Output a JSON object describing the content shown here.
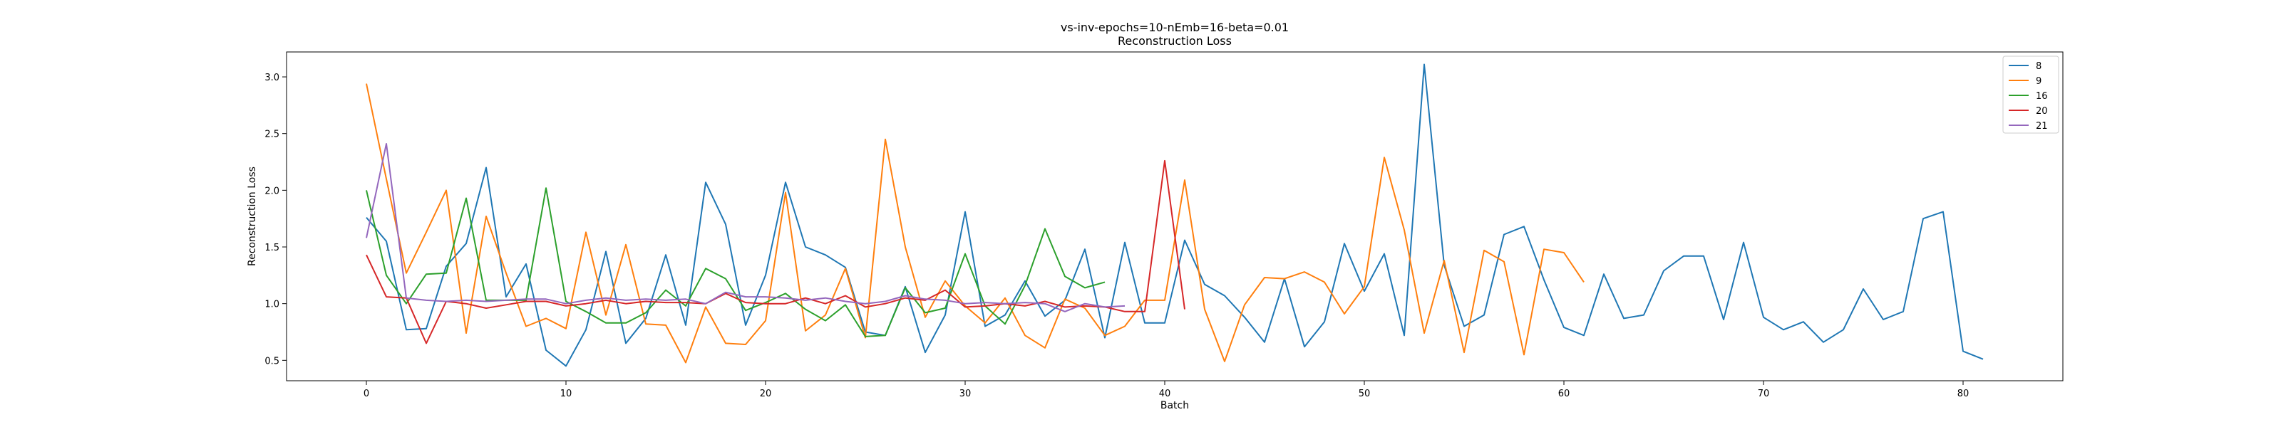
{
  "chart_data": {
    "type": "line",
    "title": "vs-inv-epochs=10-nEmb=16-beta=0.01",
    "subtitle": "Reconstruction Loss",
    "xlabel": "Batch",
    "ylabel": "Reconstruction Loss",
    "xlim": [
      -4,
      85
    ],
    "ylim": [
      0.32,
      3.22
    ],
    "xticks": [
      0,
      10,
      20,
      30,
      40,
      50,
      60,
      70,
      80
    ],
    "yticks": [
      0.5,
      1.0,
      1.5,
      2.0,
      2.5,
      3.0
    ],
    "ytick_labels": [
      "0.5",
      "1.0",
      "1.5",
      "2.0",
      "2.5",
      "3.0"
    ],
    "grid": false,
    "legend_position": "top-right",
    "series": [
      {
        "name": "8",
        "color": "#1f77b4",
        "values": [
          1.76,
          1.55,
          0.77,
          0.78,
          1.33,
          1.53,
          2.2,
          1.06,
          1.35,
          0.59,
          0.45,
          0.77,
          1.46,
          0.65,
          0.87,
          1.43,
          0.81,
          2.07,
          1.7,
          0.81,
          1.25,
          2.07,
          1.5,
          1.43,
          1.32,
          0.75,
          0.72,
          1.15,
          0.57,
          0.9,
          1.81,
          0.8,
          0.9,
          1.2,
          0.89,
          1.03,
          1.48,
          0.7,
          1.54,
          0.83,
          0.83,
          1.56,
          1.17,
          1.07,
          0.88,
          0.66,
          1.22,
          0.62,
          0.84,
          1.53,
          1.11,
          1.44,
          0.72,
          3.11,
          1.34,
          0.8,
          0.9,
          1.61,
          1.68,
          1.21,
          0.79,
          0.72,
          1.26,
          0.87,
          0.9,
          1.29,
          1.42,
          1.42,
          0.86,
          1.54,
          0.88,
          0.77,
          0.84,
          0.66,
          0.77,
          1.13,
          0.86,
          0.93,
          1.75,
          1.81,
          0.58,
          0.51
        ]
      },
      {
        "name": "9",
        "color": "#ff7f0e",
        "values": [
          2.94,
          2.1,
          1.27,
          1.63,
          2.0,
          0.74,
          1.77,
          1.27,
          0.8,
          0.87,
          0.78,
          1.63,
          0.9,
          1.52,
          0.82,
          0.81,
          0.48,
          0.97,
          0.65,
          0.64,
          0.85,
          1.98,
          0.76,
          0.9,
          1.31,
          0.7,
          2.45,
          1.5,
          0.88,
          1.2,
          0.98,
          0.83,
          1.05,
          0.72,
          0.61,
          1.04,
          0.96,
          0.72,
          0.8,
          1.03,
          1.03,
          2.09,
          0.95,
          0.49,
          0.99,
          1.23,
          1.22,
          1.28,
          1.19,
          0.91,
          1.15,
          2.29,
          1.65,
          0.74,
          1.38,
          0.57,
          1.47,
          1.37,
          0.55,
          1.48,
          1.45,
          1.19
        ]
      },
      {
        "name": "16",
        "color": "#2ca02c",
        "values": [
          2.0,
          1.25,
          1.0,
          1.26,
          1.27,
          1.93,
          1.03,
          1.03,
          1.03,
          2.02,
          1.02,
          0.93,
          0.83,
          0.83,
          0.92,
          1.12,
          0.98,
          1.31,
          1.22,
          0.94,
          1.01,
          1.09,
          0.95,
          0.85,
          0.99,
          0.71,
          0.72,
          1.14,
          0.92,
          0.96,
          1.44,
          0.98,
          0.82,
          1.16,
          1.66,
          1.24,
          1.14,
          1.19
        ]
      },
      {
        "name": "20",
        "color": "#d62728",
        "values": [
          1.43,
          1.06,
          1.05,
          0.65,
          1.02,
          1.0,
          0.96,
          0.99,
          1.02,
          1.02,
          0.98,
          1.0,
          1.03,
          1.0,
          1.02,
          1.01,
          1.01,
          1.0,
          1.09,
          1.01,
          1.0,
          1.0,
          1.05,
          1.0,
          1.07,
          0.97,
          1.0,
          1.05,
          1.03,
          1.12,
          0.97,
          0.98,
          1.0,
          0.98,
          1.02,
          0.97,
          0.98,
          0.97,
          0.93,
          0.93,
          2.26,
          0.95
        ]
      },
      {
        "name": "21",
        "color": "#9467bd",
        "values": [
          1.58,
          2.41,
          1.05,
          1.03,
          1.02,
          1.03,
          1.02,
          1.03,
          1.04,
          1.04,
          1.0,
          1.03,
          1.05,
          1.03,
          1.04,
          1.03,
          1.04,
          1.0,
          1.1,
          1.06,
          1.06,
          1.05,
          1.03,
          1.05,
          1.02,
          1.0,
          1.02,
          1.07,
          1.04,
          1.03,
          1.0,
          1.01,
          1.0,
          1.01,
          1.0,
          0.93,
          1.0,
          0.97,
          0.98
        ]
      }
    ]
  }
}
